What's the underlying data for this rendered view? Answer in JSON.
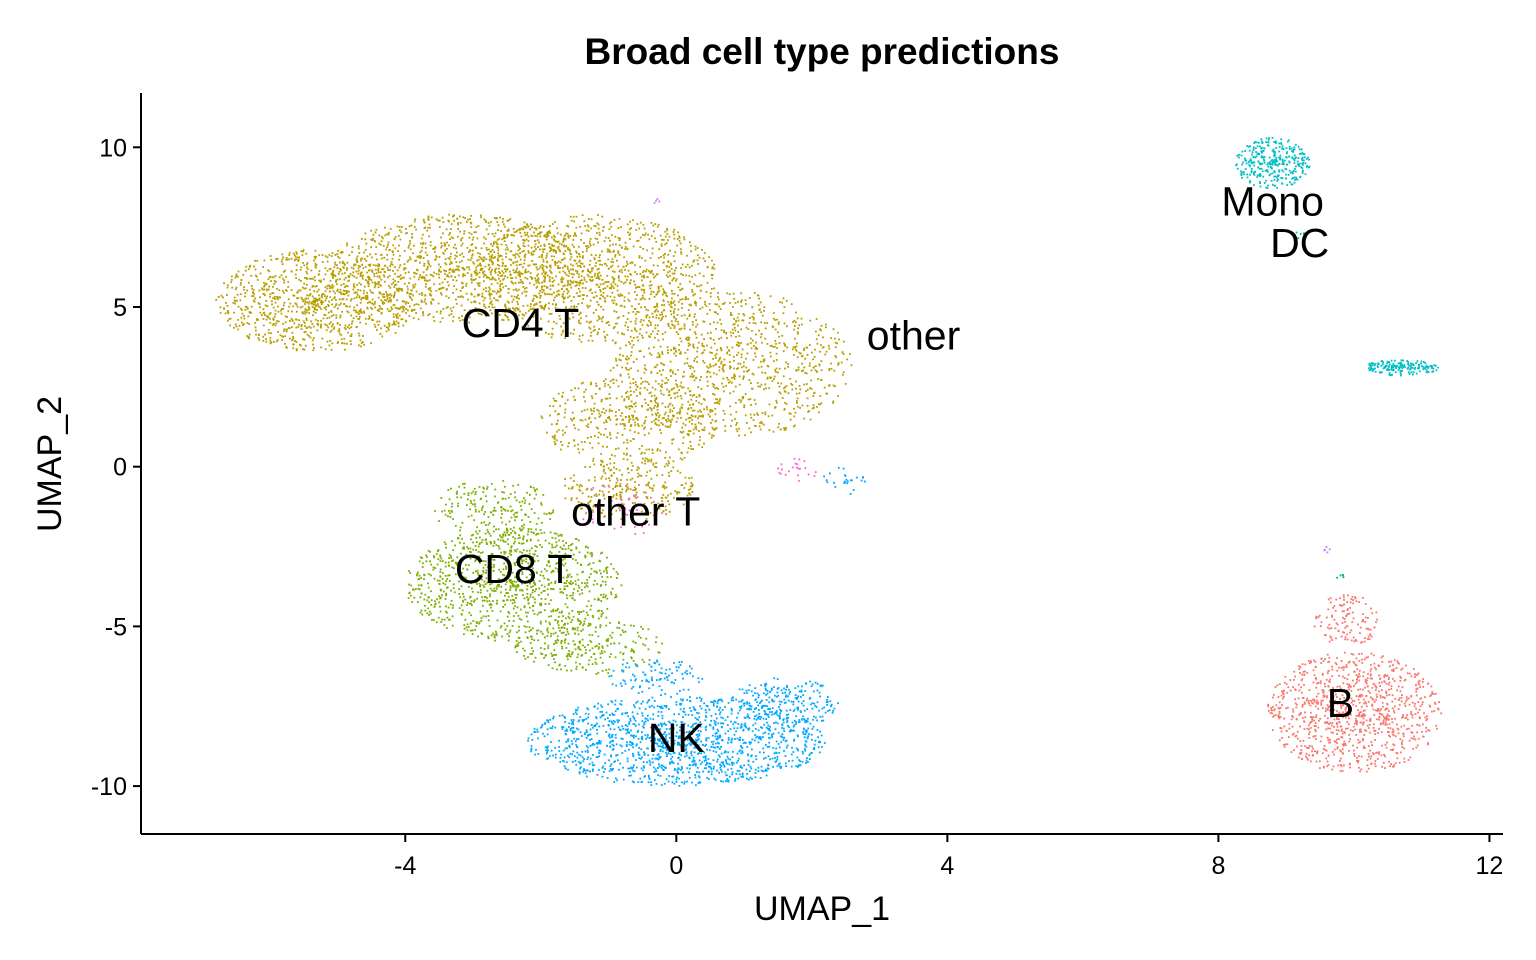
{
  "chart_data": {
    "type": "scatter",
    "title": "Broad cell type predictions",
    "xlabel": "UMAP_1",
    "ylabel": "UMAP_2",
    "xlim": [
      -7.9,
      12.2
    ],
    "ylim": [
      -11.5,
      11.7
    ],
    "xticks": [
      {
        "value": -4,
        "label": "-4"
      },
      {
        "value": 0,
        "label": "0"
      },
      {
        "value": 4,
        "label": "4"
      },
      {
        "value": 8,
        "label": "8"
      },
      {
        "value": 12,
        "label": "12"
      }
    ],
    "yticks": [
      {
        "value": 10,
        "label": "10"
      },
      {
        "value": 5,
        "label": "5"
      },
      {
        "value": 0,
        "label": "0"
      },
      {
        "value": -5,
        "label": "-5"
      },
      {
        "value": -10,
        "label": "-10"
      }
    ],
    "grid": false,
    "legend": "none",
    "series": [
      {
        "name": "CD4 T",
        "color": "#b79f00",
        "label": {
          "x": -2.3,
          "y": 4.5
        },
        "point_regions": [
          {
            "cx": -5.3,
            "cy": 5.2,
            "rx": 1.5,
            "ry": 1.6,
            "n": 950
          },
          {
            "cx": -3.2,
            "cy": 6.2,
            "rx": 1.9,
            "ry": 1.7,
            "n": 1100
          },
          {
            "cx": -1.2,
            "cy": 5.9,
            "rx": 1.8,
            "ry": 2.0,
            "n": 1100
          },
          {
            "cx": 0.8,
            "cy": 3.2,
            "rx": 1.8,
            "ry": 2.3,
            "n": 950
          },
          {
            "cx": -0.7,
            "cy": 1.4,
            "rx": 1.3,
            "ry": 1.5,
            "n": 450
          },
          {
            "cx": -0.7,
            "cy": -0.7,
            "rx": 1.0,
            "ry": 1.0,
            "n": 250
          }
        ]
      },
      {
        "name": "CD8 T",
        "color": "#7cae00",
        "label": {
          "x": -2.4,
          "y": -3.2
        },
        "point_regions": [
          {
            "cx": -2.4,
            "cy": -3.7,
            "rx": 1.6,
            "ry": 1.8,
            "n": 1000
          },
          {
            "cx": -1.3,
            "cy": -5.6,
            "rx": 1.1,
            "ry": 0.9,
            "n": 250
          },
          {
            "cx": -2.7,
            "cy": -1.4,
            "rx": 0.9,
            "ry": 1.0,
            "n": 200
          }
        ]
      },
      {
        "name": "NK",
        "color": "#00a9ff",
        "label": {
          "x": 0.0,
          "y": -8.5
        },
        "point_regions": [
          {
            "cx": 0.0,
            "cy": -8.6,
            "rx": 2.2,
            "ry": 1.4,
            "n": 1400
          },
          {
            "cx": 1.6,
            "cy": -7.4,
            "rx": 0.8,
            "ry": 0.8,
            "n": 220
          },
          {
            "cx": -0.3,
            "cy": -6.6,
            "rx": 0.7,
            "ry": 0.6,
            "n": 100
          },
          {
            "cx": 2.5,
            "cy": -0.4,
            "rx": 0.35,
            "ry": 0.5,
            "n": 25
          }
        ]
      },
      {
        "name": "B",
        "color": "#f8766d",
        "label": {
          "x": 9.8,
          "y": -7.4
        },
        "point_regions": [
          {
            "cx": 10.0,
            "cy": -7.7,
            "rx": 1.3,
            "ry": 1.9,
            "n": 1000
          },
          {
            "cx": 9.9,
            "cy": -4.8,
            "rx": 0.5,
            "ry": 0.8,
            "n": 120
          }
        ]
      },
      {
        "name": "Mono",
        "color": "#00bfc4",
        "label": {
          "x": 8.8,
          "y": 8.3
        },
        "point_regions": [
          {
            "cx": 8.8,
            "cy": 9.5,
            "rx": 0.55,
            "ry": 0.8,
            "n": 330
          },
          {
            "cx": 10.7,
            "cy": 3.1,
            "rx": 0.55,
            "ry": 0.25,
            "n": 170
          }
        ]
      },
      {
        "name": "DC",
        "color": "#00be67",
        "label": {
          "x": 9.2,
          "y": 7.0
        },
        "point_regions": [
          {
            "cx": 9.2,
            "cy": 7.3,
            "rx": 0.15,
            "ry": 0.15,
            "n": 6
          },
          {
            "cx": 9.8,
            "cy": -3.5,
            "rx": 0.06,
            "ry": 0.15,
            "n": 5
          }
        ]
      },
      {
        "name": "other",
        "color": "#c77cff",
        "label": {
          "x": 3.5,
          "y": 4.1
        },
        "point_regions": [
          {
            "cx": -0.3,
            "cy": 8.3,
            "rx": 0.05,
            "ry": 0.1,
            "n": 4
          },
          {
            "cx": 9.6,
            "cy": -2.6,
            "rx": 0.06,
            "ry": 0.1,
            "n": 5
          }
        ]
      },
      {
        "name": "other T",
        "color": "#ff61cc",
        "label": {
          "x": -0.6,
          "y": -1.4
        },
        "point_regions": [
          {
            "cx": 1.8,
            "cy": -0.1,
            "rx": 0.3,
            "ry": 0.4,
            "n": 22
          },
          {
            "cx": -0.8,
            "cy": -1.3,
            "rx": 0.7,
            "ry": 0.9,
            "n": 40
          }
        ]
      }
    ]
  }
}
